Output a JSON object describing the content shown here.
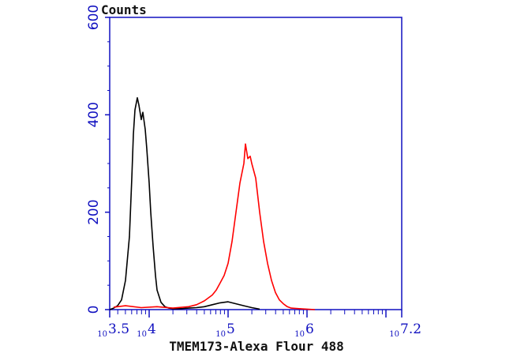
{
  "chart_data": {
    "type": "line",
    "title": "",
    "xlabel": "TMEM173-Alexa Flour 488",
    "ylabel": "Counts",
    "x_scale": "log10",
    "xlim": [
      3.5,
      7.2
    ],
    "ylim": [
      0,
      600
    ],
    "y_ticks": [
      0,
      200,
      400,
      600
    ],
    "x_ticks": [
      {
        "base": "10",
        "exp": "3.5",
        "value": 3.5
      },
      {
        "base": "10",
        "exp": "4",
        "value": 4
      },
      {
        "base": "10",
        "exp": "5",
        "value": 5
      },
      {
        "base": "10",
        "exp": "6",
        "value": 6
      },
      {
        "base": "10",
        "exp": "7.2",
        "value": 7.2
      }
    ],
    "grid": false,
    "legend": "none",
    "colors": {
      "axis": "#1010c0",
      "control": "#000000",
      "sample": "#ff0000"
    },
    "series": [
      {
        "color": "#000000",
        "x": [
          3.5,
          3.55,
          3.6,
          3.65,
          3.7,
          3.75,
          3.78,
          3.8,
          3.82,
          3.85,
          3.87,
          3.9,
          3.92,
          3.95,
          3.97,
          4.0,
          4.02,
          4.05,
          4.08,
          4.1,
          4.15,
          4.2,
          4.25,
          4.3,
          4.4,
          4.5,
          4.6,
          4.7,
          4.8,
          4.9,
          5.0,
          5.1,
          5.2,
          5.3,
          5.4
        ],
        "y": [
          0,
          3,
          8,
          20,
          60,
          150,
          270,
          360,
          410,
          435,
          420,
          390,
          405,
          370,
          330,
          260,
          200,
          130,
          70,
          40,
          15,
          6,
          3,
          2,
          2,
          3,
          4,
          6,
          10,
          14,
          16,
          12,
          8,
          4,
          1
        ]
      },
      {
        "color": "#ff0000",
        "x": [
          3.55,
          3.7,
          3.9,
          4.1,
          4.3,
          4.5,
          4.6,
          4.7,
          4.8,
          4.85,
          4.9,
          4.95,
          5.0,
          5.05,
          5.1,
          5.15,
          5.2,
          5.22,
          5.25,
          5.28,
          5.3,
          5.35,
          5.4,
          5.45,
          5.5,
          5.55,
          5.6,
          5.65,
          5.7,
          5.75,
          5.8,
          5.9,
          6.0,
          6.1
        ],
        "y": [
          5,
          8,
          4,
          6,
          3,
          6,
          10,
          18,
          30,
          40,
          55,
          70,
          95,
          140,
          200,
          260,
          300,
          340,
          310,
          315,
          300,
          270,
          200,
          140,
          95,
          60,
          35,
          20,
          12,
          6,
          3,
          2,
          1,
          0
        ]
      }
    ]
  }
}
